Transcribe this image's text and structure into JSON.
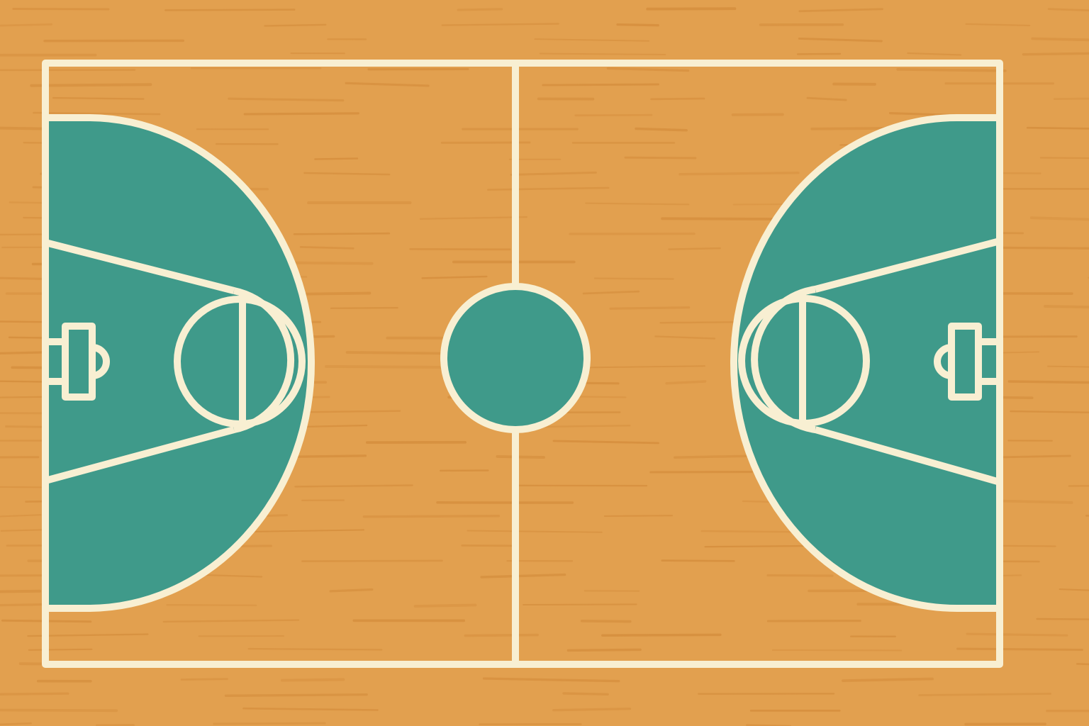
{
  "colors": {
    "floor": "#e2a04f",
    "floor_grain": "#d68f3e",
    "paint": "#3f9a8a",
    "line": "#f8efd2"
  },
  "court": {
    "orientation": "horizontal",
    "halves": [
      "left",
      "right"
    ],
    "features": [
      "boundary-lines",
      "half-court-line",
      "center-circle",
      "three-point-area",
      "free-throw-lane",
      "free-throw-circle",
      "backboard",
      "hoop"
    ]
  }
}
